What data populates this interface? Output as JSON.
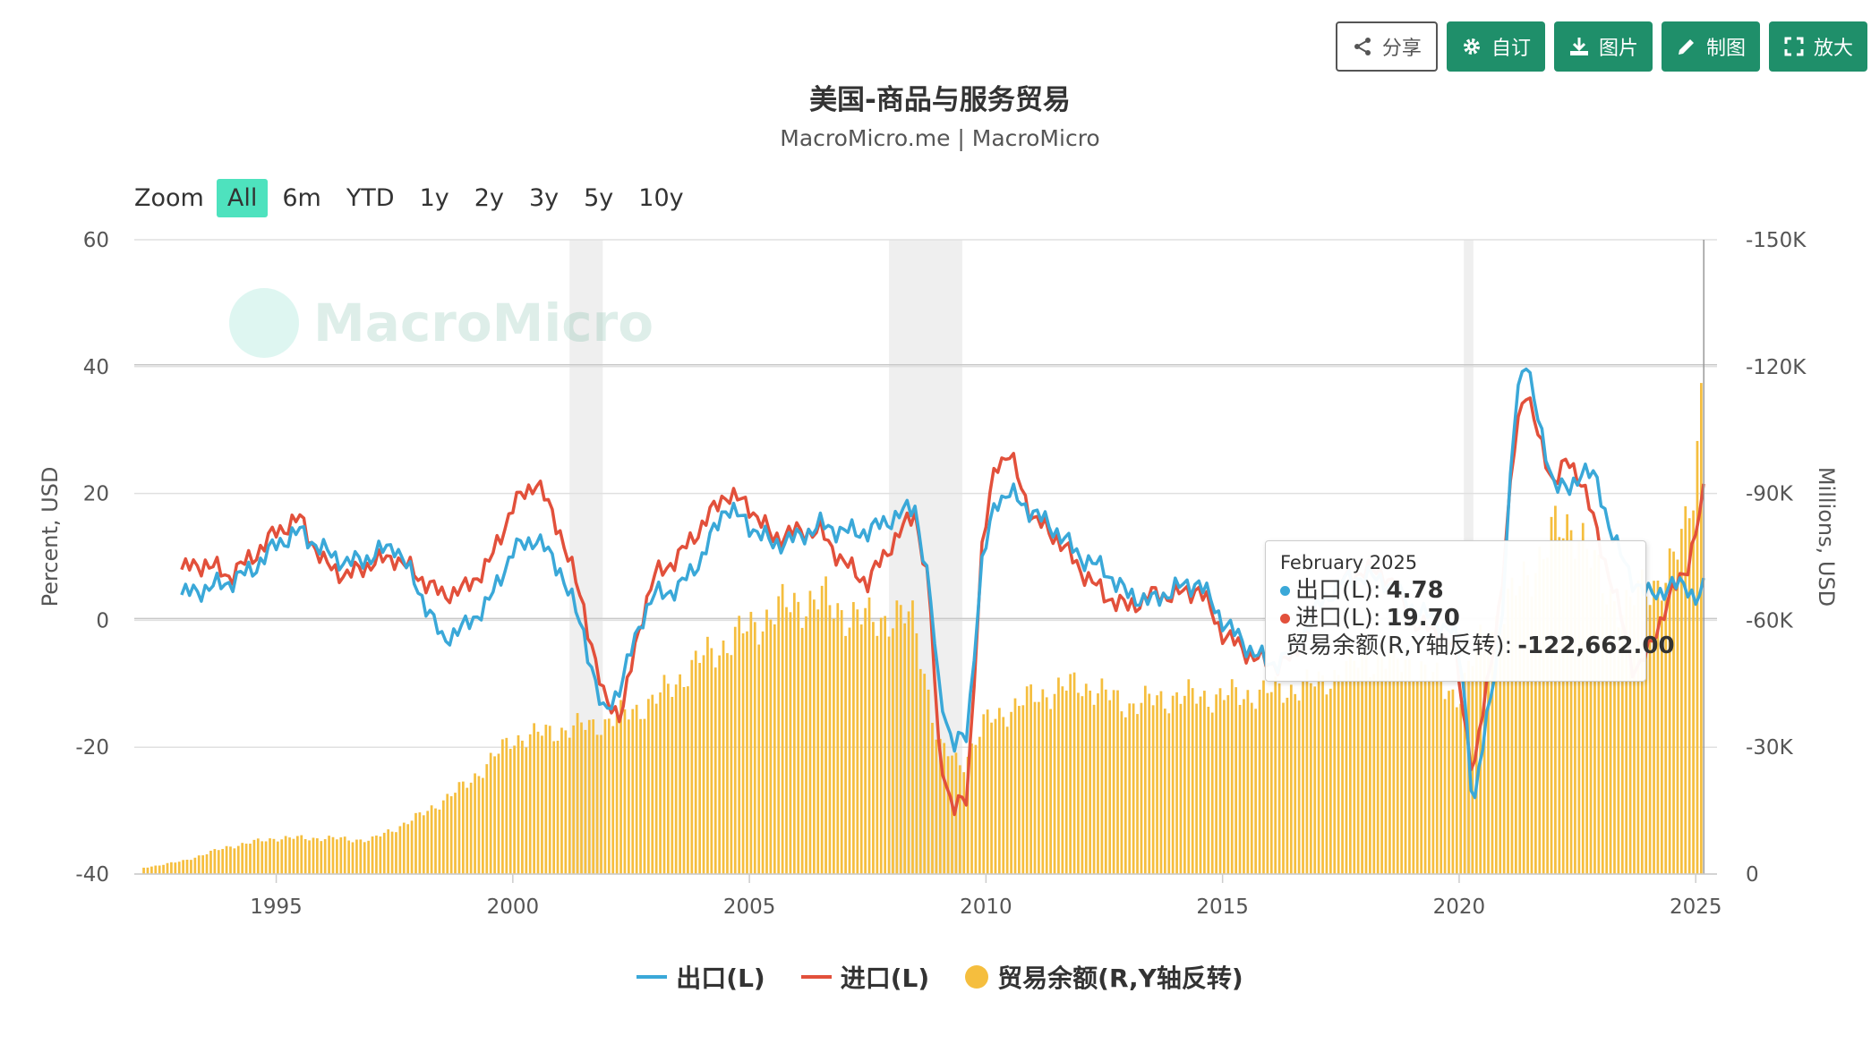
{
  "toolbar": {
    "share": "分享",
    "customize": "自订",
    "image": "图片",
    "draw": "制图",
    "fullscreen": "放大"
  },
  "header": {
    "title": "美国-商品与服务贸易",
    "subtitle": "MacroMicro.me | MacroMicro"
  },
  "zoom": {
    "label": "Zoom",
    "options": [
      "All",
      "6m",
      "YTD",
      "1y",
      "2y",
      "3y",
      "5y",
      "10y"
    ],
    "selected": "All"
  },
  "watermark": {
    "text": "MacroMicro"
  },
  "colors": {
    "exports": "#3aa8d8",
    "imports": "#e2503b",
    "balance": "#f5be3e",
    "recession": "#efefef",
    "accent": "#1f8f6a"
  },
  "chart_data": {
    "type": "line",
    "title": "美国-商品与服务贸易",
    "x_ticks": [
      "1995",
      "2000",
      "2005",
      "2010",
      "2015",
      "2020",
      "2025"
    ],
    "x_range": [
      1992.0,
      2025.45
    ],
    "y_left": {
      "label": "Percent, USD",
      "range": [
        -40,
        60
      ],
      "ticks": [
        "60",
        "40",
        "20",
        "0",
        "-20",
        "-40"
      ]
    },
    "y_right": {
      "label": "Millions, USD",
      "range": [
        0,
        -150000
      ],
      "inverted": true,
      "ticks": [
        "-150K",
        "-120K",
        "-90K",
        "-60K",
        "-30K",
        "0"
      ]
    },
    "recessions": [
      [
        2001.2,
        2001.9
      ],
      [
        2007.95,
        2009.5
      ],
      [
        2020.1,
        2020.3
      ]
    ],
    "series": [
      {
        "name": "出口(L)",
        "axis": "left",
        "type": "line",
        "x": [
          1993.0,
          1993.5,
          1994.0,
          1994.5,
          1995.0,
          1995.5,
          1996.0,
          1996.5,
          1997.0,
          1997.5,
          1998.0,
          1998.5,
          1999.0,
          1999.5,
          2000.0,
          2000.5,
          2001.0,
          2001.5,
          2001.9,
          2002.3,
          2002.7,
          2003.0,
          2003.5,
          2004.0,
          2004.5,
          2005.0,
          2005.5,
          2006.0,
          2006.5,
          2007.0,
          2007.5,
          2008.0,
          2008.5,
          2008.8,
          2009.0,
          2009.3,
          2009.6,
          2009.9,
          2010.2,
          2010.5,
          2011.0,
          2011.5,
          2012.0,
          2012.5,
          2013.0,
          2013.5,
          2014.0,
          2014.5,
          2015.0,
          2015.5,
          2016.0,
          2016.5,
          2017.0,
          2017.5,
          2018.0,
          2018.5,
          2019.0,
          2019.5,
          2019.9,
          2020.1,
          2020.3,
          2020.6,
          2020.9,
          2021.2,
          2021.4,
          2021.7,
          2022.0,
          2022.3,
          2022.6,
          2022.9,
          2023.3,
          2023.7,
          2024.0,
          2024.4,
          2024.8,
          2025.0,
          2025.17
        ],
        "y": [
          4,
          5,
          6,
          8,
          12,
          14,
          11,
          9,
          10,
          12,
          5,
          -3,
          -1,
          3,
          11,
          13,
          8,
          -2,
          -15,
          -10,
          0,
          4,
          5,
          10,
          18,
          15,
          12,
          13,
          15,
          14,
          14,
          16,
          18,
          5,
          -10,
          -20,
          -18,
          8,
          19,
          20,
          17,
          14,
          10,
          8,
          4,
          3,
          5,
          6,
          0,
          -4,
          -7,
          -5,
          2,
          6,
          7,
          6,
          2,
          0,
          -2,
          -10,
          -30,
          -15,
          0,
          35,
          42,
          30,
          22,
          20,
          24,
          22,
          12,
          6,
          4,
          5,
          6,
          3,
          4.78
        ]
      },
      {
        "name": "进口(L)",
        "axis": "left",
        "type": "line",
        "x": [
          1993.0,
          1993.5,
          1994.0,
          1994.5,
          1995.0,
          1995.5,
          1996.0,
          1996.5,
          1997.0,
          1997.5,
          1998.0,
          1998.5,
          1999.0,
          1999.5,
          2000.0,
          2000.5,
          2001.0,
          2001.5,
          2001.9,
          2002.3,
          2002.7,
          2003.0,
          2003.5,
          2004.0,
          2004.5,
          2005.0,
          2005.5,
          2006.0,
          2006.5,
          2007.0,
          2007.5,
          2008.0,
          2008.5,
          2008.8,
          2009.0,
          2009.3,
          2009.6,
          2009.9,
          2010.2,
          2010.5,
          2011.0,
          2011.5,
          2012.0,
          2012.5,
          2013.0,
          2013.5,
          2014.0,
          2014.5,
          2015.0,
          2015.5,
          2016.0,
          2016.5,
          2017.0,
          2017.5,
          2018.0,
          2018.5,
          2019.0,
          2019.5,
          2019.9,
          2020.1,
          2020.3,
          2020.6,
          2020.9,
          2021.2,
          2021.4,
          2021.7,
          2022.0,
          2022.3,
          2022.6,
          2022.9,
          2023.3,
          2023.7,
          2024.0,
          2024.4,
          2024.8,
          2025.0,
          2025.17
        ],
        "y": [
          8,
          9,
          7,
          10,
          14,
          16,
          9,
          7,
          9,
          10,
          7,
          4,
          5,
          9,
          18,
          22,
          14,
          2,
          -12,
          -15,
          0,
          7,
          10,
          15,
          20,
          18,
          13,
          14,
          14,
          9,
          6,
          12,
          17,
          5,
          -20,
          -30,
          -28,
          10,
          25,
          26,
          16,
          13,
          8,
          4,
          2,
          4,
          4,
          5,
          -2,
          -5,
          -7,
          -6,
          2,
          6,
          8,
          7,
          0,
          -2,
          -4,
          -15,
          -24,
          -10,
          5,
          30,
          37,
          28,
          22,
          25,
          22,
          14,
          4,
          -8,
          -5,
          3,
          8,
          14,
          19.7
        ]
      },
      {
        "name": "贸易余额(R,Y轴反转)",
        "axis": "right",
        "type": "bar",
        "x": [
          1992.2,
          1993.0,
          1994.0,
          1995.0,
          1996.0,
          1997.0,
          1998.0,
          1999.0,
          2000.0,
          2001.0,
          2002.0,
          2003.0,
          2004.0,
          2005.0,
          2005.5,
          2006.0,
          2006.5,
          2007.0,
          2007.5,
          2008.0,
          2008.5,
          2009.0,
          2009.5,
          2010.0,
          2011.0,
          2012.0,
          2013.0,
          2014.0,
          2015.0,
          2016.0,
          2017.0,
          2018.0,
          2019.0,
          2020.0,
          2020.5,
          2021.0,
          2021.5,
          2022.0,
          2022.5,
          2023.0,
          2023.5,
          2024.0,
          2024.5,
          2024.8,
          2025.0,
          2025.17
        ],
        "y": [
          -1500,
          -3000,
          -6500,
          -8500,
          -8500,
          -8000,
          -13500,
          -21000,
          -32000,
          -34000,
          -36000,
          -41000,
          -51000,
          -58000,
          -62000,
          -64000,
          -65000,
          -62000,
          -60000,
          -61000,
          -60000,
          -30000,
          -26000,
          -36000,
          -42000,
          -45000,
          -40000,
          -42000,
          -42000,
          -43000,
          -45000,
          -51000,
          -50000,
          -42000,
          -56000,
          -63000,
          -72000,
          -80000,
          -83000,
          -68000,
          -63000,
          -68000,
          -72000,
          -82000,
          -98000,
          -122662
        ]
      }
    ],
    "tooltip": {
      "date": "February 2025",
      "rows": [
        {
          "label": "出口(L): ",
          "value": "4.78"
        },
        {
          "label": "进口(L): ",
          "value": "19.70"
        },
        {
          "label": "贸易余额(R,Y轴反转): ",
          "value": "-122,662.00"
        }
      ]
    }
  },
  "legend": {
    "items": [
      "出口(L)",
      "进口(L)",
      "贸易余额(R,Y轴反转)"
    ]
  }
}
